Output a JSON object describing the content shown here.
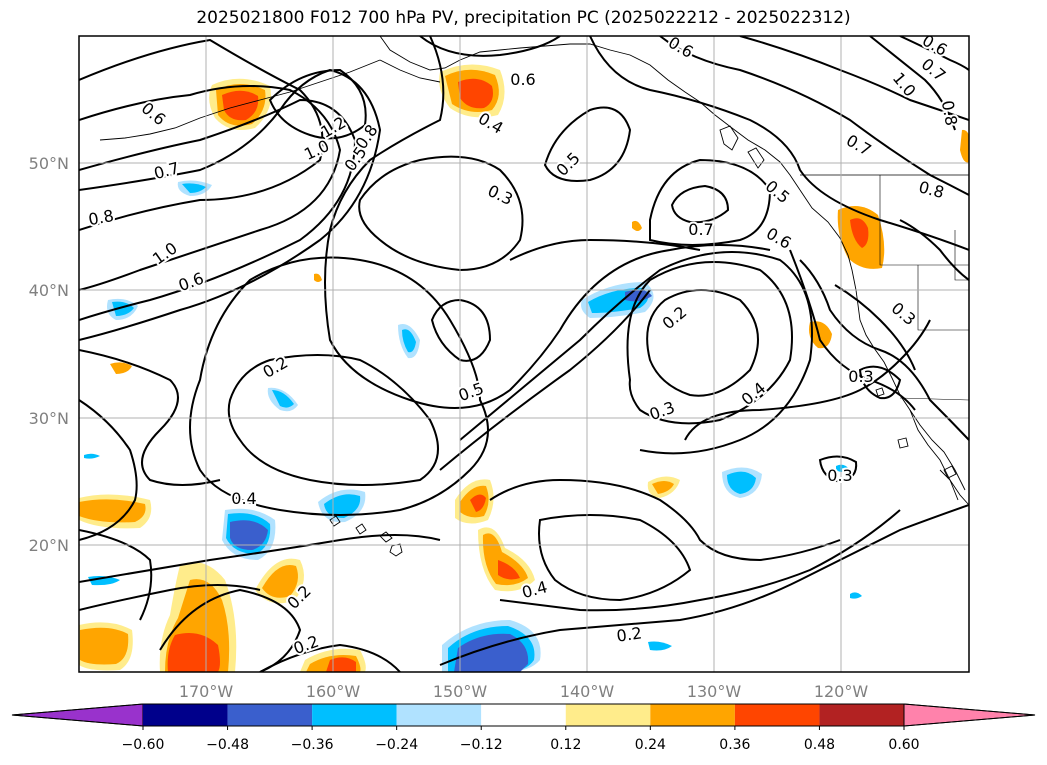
{
  "title": "2025021800 F012 700 hPa PV, precipitation PC (2025022212 - 2025022312)",
  "map": {
    "lat_labels": [
      "50°N",
      "40°N",
      "30°N",
      "20°N"
    ],
    "lon_labels": [
      "170°W",
      "160°W",
      "150°W",
      "140°W",
      "130°W",
      "120°W"
    ],
    "contour_labels": [
      "0.6",
      "0.7",
      "0.8",
      "1.0",
      "0.6",
      "1.2",
      "1.0",
      "0.8",
      "0.5",
      "0.6",
      "0.4",
      "0.5",
      "0.3",
      "0.6",
      "0.6",
      "0.7",
      "1.0",
      "0.8",
      "0.7",
      "0.8",
      "0.5",
      "0.7",
      "0.6",
      "0.3",
      "0.2",
      "0.2",
      "0.5",
      "0.4",
      "0.3",
      "0.3",
      "0.4",
      "0.2",
      "0.4",
      "0.2",
      "0.2",
      "0.3"
    ]
  },
  "colorbar": {
    "levels": [
      -0.6,
      -0.48,
      -0.36,
      -0.24,
      -0.12,
      0.12,
      0.24,
      0.36,
      0.48,
      0.6
    ],
    "tick_labels": [
      "−0.60",
      "−0.48",
      "−0.36",
      "−0.24",
      "−0.12",
      "0.12",
      "0.24",
      "0.36",
      "0.48",
      "0.60"
    ],
    "colors": [
      "#9932cc",
      "#00008b",
      "#3a5fcd",
      "#00bfff",
      "#b0e2ff",
      "#ffffff",
      "#ffec8b",
      "#ffa500",
      "#ff4500",
      "#b22222",
      "#ff82ab"
    ]
  }
}
